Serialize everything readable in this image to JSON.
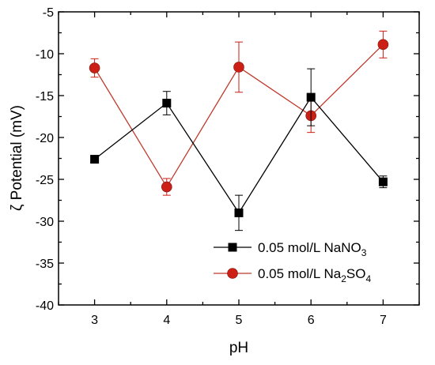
{
  "chart_data": {
    "type": "line",
    "xlabel": "pH",
    "ylabel": "ζ Potential (mV)",
    "x": [
      3,
      4,
      5,
      6,
      7
    ],
    "xlim": [
      2.5,
      7.5
    ],
    "ylim": [
      -40,
      -5
    ],
    "xticks": [
      "3",
      "4",
      "5",
      "6",
      "7"
    ],
    "yticks": [
      "-5",
      "-10",
      "-15",
      "-20",
      "-25",
      "-30",
      "-35",
      "-40"
    ],
    "legend_position": "bottom-right",
    "grid": false,
    "series": [
      {
        "name_parts": [
          "0.05 mol/L NaNO",
          "3",
          ""
        ],
        "marker": "square",
        "color": "#000000",
        "values": [
          -22.6,
          -15.9,
          -29.0,
          -15.2,
          -25.3
        ],
        "errors": [
          0.0,
          1.4,
          2.1,
          3.4,
          0.7
        ]
      },
      {
        "name_parts": [
          "0.05 mol/L Na",
          "2",
          "SO",
          "4"
        ],
        "marker": "circle",
        "color": "#cc1f16",
        "line_color": "#c0392b",
        "values": [
          -11.7,
          -25.9,
          -11.6,
          -17.4,
          -8.9
        ],
        "errors": [
          1.1,
          1.0,
          3.0,
          2.0,
          1.6
        ]
      }
    ]
  }
}
